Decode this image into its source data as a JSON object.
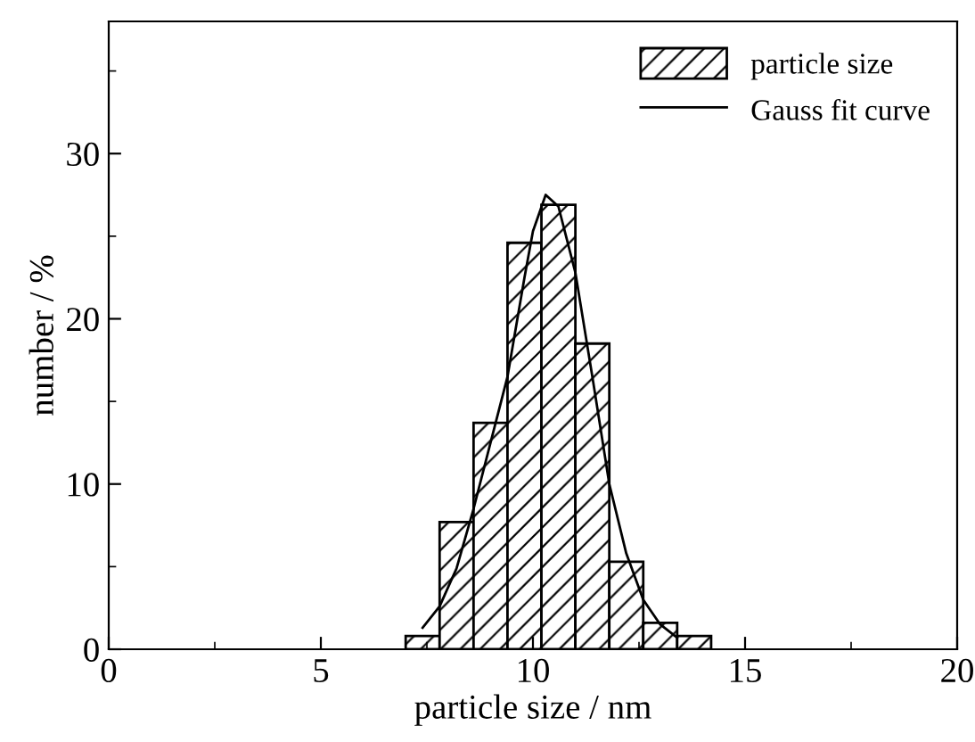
{
  "chart_data": {
    "type": "histogram",
    "xlabel": "particle size / nm",
    "ylabel": "number / %",
    "bins": [
      7.0,
      7.8,
      8.6,
      9.4,
      10.2,
      11.0,
      11.8,
      12.6,
      13.4,
      14.2
    ],
    "series": [
      {
        "name": "particle size",
        "color": "#000000",
        "values": [
          0.8,
          7.7,
          13.7,
          24.6,
          26.9,
          18.5,
          5.3,
          1.6,
          0.8
        ]
      },
      {
        "name": "Gauss fit curve",
        "type": "line",
        "color": "#000000",
        "x": [
          7.4,
          7.8,
          8.2,
          8.6,
          9.0,
          9.4,
          9.8,
          10.0,
          10.3,
          10.6,
          11.0,
          11.4,
          11.8,
          12.2,
          12.6,
          13.0,
          13.4
        ],
        "values": [
          1.3,
          2.6,
          4.9,
          8.5,
          12.5,
          16.5,
          22.5,
          25.3,
          27.5,
          26.8,
          22.8,
          16.5,
          10.0,
          5.8,
          3.0,
          1.5,
          0.7
        ]
      }
    ],
    "xlim": [
      0,
      20
    ],
    "xticks": [
      0,
      5,
      10,
      15,
      20
    ],
    "ylim": [
      0,
      38
    ],
    "yticks": [
      0,
      10,
      20,
      30
    ],
    "grid": false,
    "legend": "top right",
    "marker": "none",
    "line_style": "solid"
  }
}
